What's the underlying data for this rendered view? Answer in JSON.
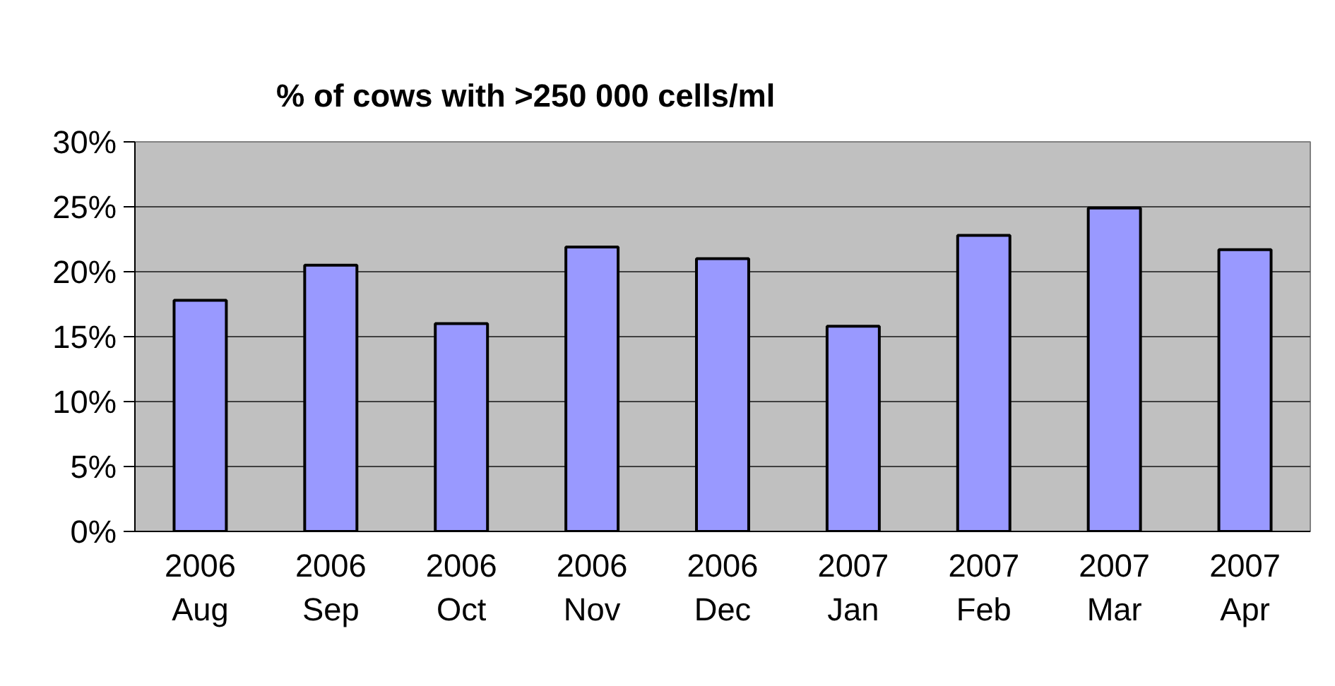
{
  "chart_data": {
    "type": "bar",
    "title": "% of cows with >250 000 cells/ml",
    "categories": [
      "2006\nAug",
      "2006\nSep",
      "2006\nOct",
      "2006\nNov",
      "2006\nDec",
      "2007\nJan",
      "2007\nFeb",
      "2007\nMar",
      "2007\nApr"
    ],
    "series": [
      {
        "color": "#9999ff",
        "values": [
          17.8,
          20.5,
          16.0,
          21.9,
          21.0,
          15.8,
          22.8,
          24.9,
          21.7
        ]
      }
    ],
    "ylim": [
      0,
      30
    ],
    "yticks": [
      {
        "value": 0,
        "label": "0%"
      },
      {
        "value": 5,
        "label": "5%"
      },
      {
        "value": 10,
        "label": "10%"
      },
      {
        "value": 15,
        "label": "15%"
      },
      {
        "value": 20,
        "label": "20%"
      },
      {
        "value": 25,
        "label": "25%"
      },
      {
        "value": 30,
        "label": "30%"
      }
    ],
    "grid": "y"
  }
}
